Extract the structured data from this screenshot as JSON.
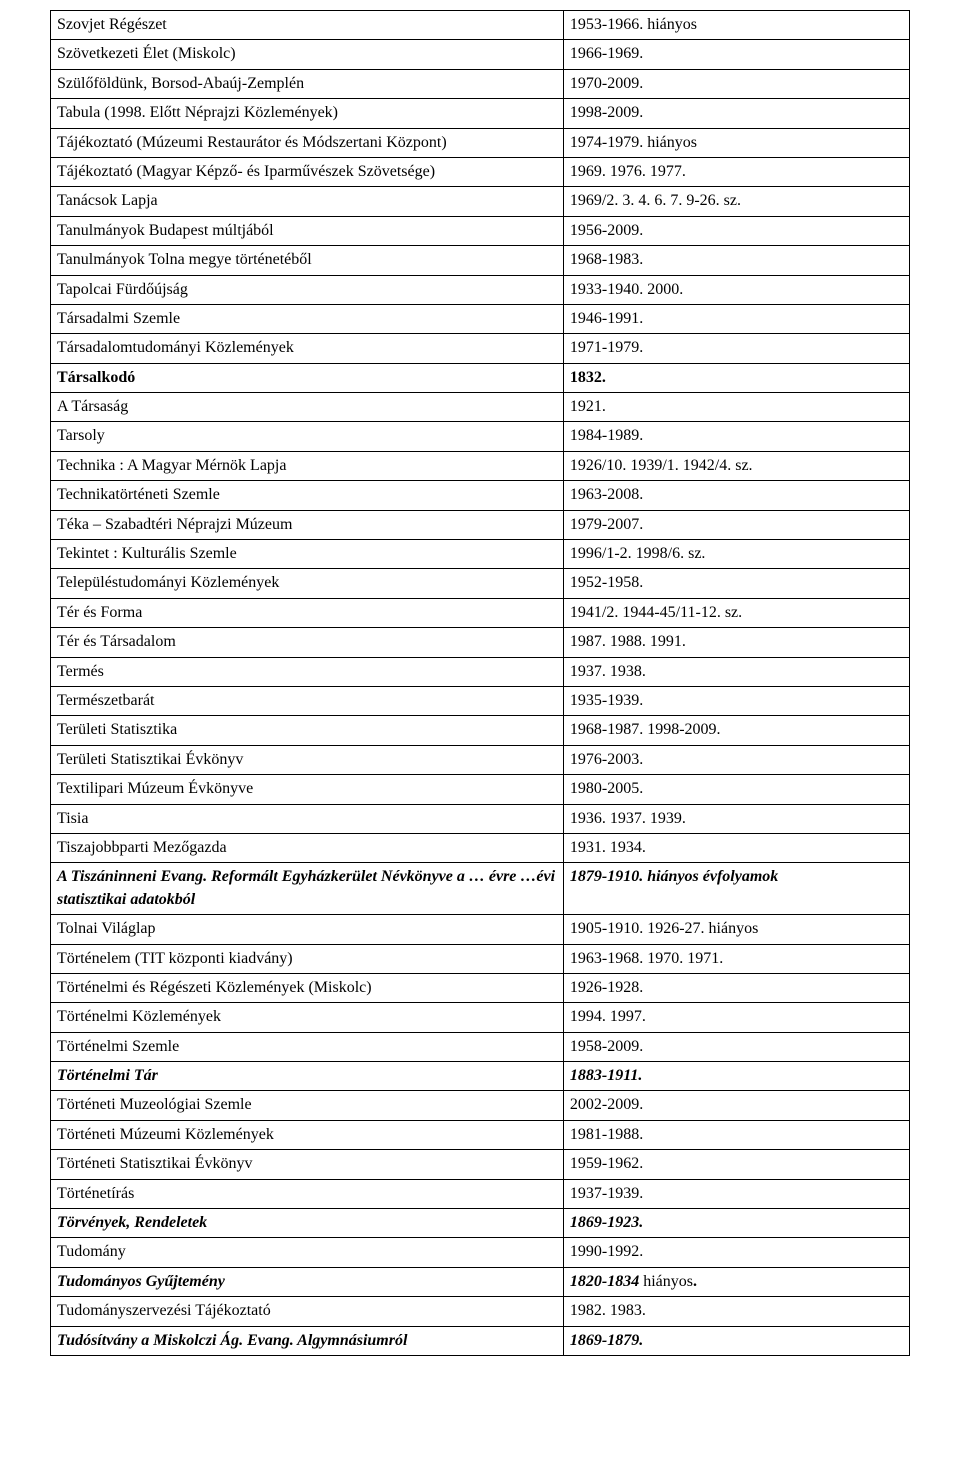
{
  "table": {
    "columns": [
      "title",
      "years"
    ],
    "col_widths": [
      "60%",
      "40%"
    ],
    "font_family": "Times New Roman",
    "font_size_pt": 12,
    "border_color": "#000000",
    "background_color": "#ffffff",
    "rows": [
      {
        "left": "Szovjet Régészet",
        "right": "1953-1966. hiányos"
      },
      {
        "left": "Szövetkezeti Élet (Miskolc)",
        "right": "1966-1969."
      },
      {
        "left": "Szülőföldünk, Borsod-Abaúj-Zemplén",
        "right": "1970-2009."
      },
      {
        "left": "Tabula (1998. Előtt Néprajzi Közlemények)",
        "right": "1998-2009."
      },
      {
        "left": "Tájékoztató (Múzeumi Restaurátor és Módszertani Központ)",
        "right": "1974-1979. hiányos"
      },
      {
        "left": "Tájékoztató (Magyar Képző- és Iparművészek Szövetsége)",
        "right": "1969. 1976. 1977."
      },
      {
        "left": "Tanácsok Lapja",
        "right": "1969/2. 3. 4. 6. 7. 9-26. sz."
      },
      {
        "left": "Tanulmányok Budapest múltjából",
        "right": "1956-2009."
      },
      {
        "left": "Tanulmányok Tolna megye történetéből",
        "right": "1968-1983."
      },
      {
        "left": "Tapolcai Fürdőújság",
        "right": "1933-1940. 2000."
      },
      {
        "left": "Társadalmi Szemle",
        "right": "1946-1991."
      },
      {
        "left": "Társadalomtudományi Közlemények",
        "right": "1971-1979."
      },
      {
        "left": "Társalkodó",
        "right": "1832.",
        "left_style": "bold",
        "right_style": "bold"
      },
      {
        "left": "A Társaság",
        "right": "1921."
      },
      {
        "left": "Tarsoly",
        "right": "1984-1989."
      },
      {
        "left": "Technika : A Magyar Mérnök Lapja",
        "right": "1926/10. 1939/1. 1942/4. sz."
      },
      {
        "left": "Technikatörténeti Szemle",
        "right": "1963-2008."
      },
      {
        "left": "Téka – Szabadtéri Néprajzi Múzeum",
        "right": "1979-2007."
      },
      {
        "left": "Tekintet : Kulturális Szemle",
        "right": "1996/1-2. 1998/6. sz."
      },
      {
        "left": "Településtudományi Közlemények",
        "right": "1952-1958."
      },
      {
        "left": "Tér és Forma",
        "right": "1941/2. 1944-45/11-12. sz."
      },
      {
        "left": "Tér és Társadalom",
        "right": "1987. 1988. 1991."
      },
      {
        "left": "Termés",
        "right": "1937. 1938."
      },
      {
        "left": "Természetbarát",
        "right": "1935-1939."
      },
      {
        "left": "Területi Statisztika",
        "right": "1968-1987. 1998-2009."
      },
      {
        "left": "Területi Statisztikai Évkönyv",
        "right": "1976-2003."
      },
      {
        "left": "Textilipari Múzeum Évkönyve",
        "right": "1980-2005."
      },
      {
        "left": "Tisia",
        "right": "1936. 1937. 1939."
      },
      {
        "left": "Tiszajobbparti Mezőgazda",
        "right": "1931. 1934."
      },
      {
        "left": "A Tiszáninneni Evang. Reformált Egyházkerület Névkönyve a … évre …évi statisztikai adatokból",
        "right": "1879-1910. hiányos évfolyamok",
        "left_style": "bolditalic",
        "right_style": "bolditalic"
      },
      {
        "left": "Tolnai Világlap",
        "right": "1905-1910. 1926-27. hiányos"
      },
      {
        "left": "Történelem (TIT központi kiadvány)",
        "right": "1963-1968. 1970. 1971."
      },
      {
        "left": "Történelmi és Régészeti Közlemények (Miskolc)",
        "right": "1926-1928."
      },
      {
        "left": "Történelmi Közlemények",
        "right": "1994. 1997."
      },
      {
        "left": "Történelmi Szemle",
        "right": "1958-2009."
      },
      {
        "left": "Történelmi Tár",
        "right": "1883-1911.",
        "left_style": "bolditalic",
        "right_style": "bolditalic"
      },
      {
        "left": "Történeti Muzeológiai Szemle",
        "right": "2002-2009."
      },
      {
        "left": "Történeti Múzeumi Közlemények",
        "right": "1981-1988."
      },
      {
        "left": "Történeti Statisztikai Évkönyv",
        "right": "1959-1962."
      },
      {
        "left": "Történetírás",
        "right": "1937-1939."
      },
      {
        "left": "Törvények, Rendeletek",
        "right": "1869-1923.",
        "left_style": "bolditalic",
        "right_style": "bolditalic"
      },
      {
        "left": "Tudomány",
        "right": "1990-1992."
      },
      {
        "left": "Tudományos Gyűjtemény",
        "right": "1820-1834 hiányos.",
        "left_style": "bolditalic",
        "right_style": "bolditalic_partial"
      },
      {
        "left": "Tudományszervezési Tájékoztató",
        "right": "1982. 1983."
      },
      {
        "left": "Tudósítvány a Miskolczi Ág. Evang. Algymnásiumról",
        "right": "1869-1879.",
        "left_style": "bolditalic",
        "right_style": "bolditalic"
      }
    ]
  }
}
